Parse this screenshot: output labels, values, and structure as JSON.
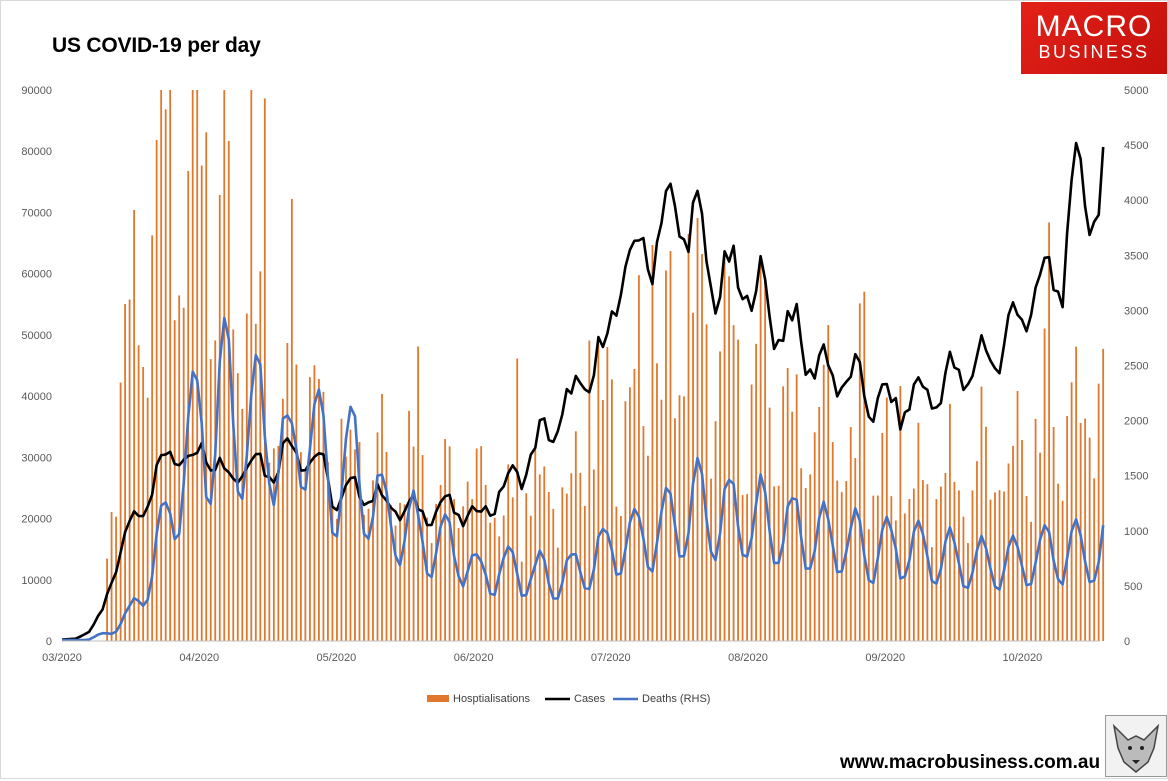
{
  "title": "US COVID-19 per day",
  "logo": {
    "line1": "MACRO",
    "line2": "BUSINESS"
  },
  "website": "www.macrobusiness.com.au",
  "colors": {
    "hospitalisations": "#e0782d",
    "cases": "#000000",
    "deaths": "#4472c4",
    "logo_bg": "#d81e1a"
  },
  "chart_data": {
    "type": "bar",
    "title": "US COVID-19 per day",
    "grid": false,
    "legend_position": "bottom",
    "x_tick_labels": [
      "03/2020",
      "04/2020",
      "05/2020",
      "06/2020",
      "07/2020",
      "08/2020",
      "09/2020",
      "10/2020"
    ],
    "y_left": {
      "min": 0,
      "max": 90000,
      "ticks": [
        0,
        10000,
        20000,
        30000,
        40000,
        50000,
        60000,
        70000,
        80000,
        90000
      ]
    },
    "y_right": {
      "min": 0,
      "max": 5000,
      "ticks": [
        0,
        500,
        1000,
        1500,
        2000,
        2500,
        3000,
        3500,
        4000,
        4500,
        5000
      ]
    },
    "series": [
      {
        "name": "Hosptialisations",
        "type": "bar",
        "axis": "left",
        "anchors_by_month": [
          [
            0,
            0
          ],
          [
            0.3,
            0
          ],
          [
            0.38,
            32000
          ],
          [
            0.5,
            45000
          ],
          [
            0.62,
            60000
          ],
          [
            0.75,
            75000
          ],
          [
            0.9,
            80000
          ],
          [
            1.0,
            75000
          ],
          [
            1.15,
            60000
          ],
          [
            1.35,
            48000
          ],
          [
            1.6,
            42000
          ],
          [
            1.8,
            40000
          ],
          [
            2.0,
            35000
          ],
          [
            2.2,
            32000
          ],
          [
            2.45,
            30000
          ],
          [
            2.8,
            27000
          ],
          [
            3.0,
            24000
          ],
          [
            3.3,
            22000
          ],
          [
            3.55,
            23000
          ],
          [
            3.8,
            30000
          ],
          [
            4.0,
            36000
          ],
          [
            4.3,
            43000
          ],
          [
            4.55,
            48000
          ],
          [
            4.75,
            45000
          ],
          [
            5.0,
            42000
          ],
          [
            5.25,
            38000
          ],
          [
            5.5,
            33000
          ],
          [
            5.8,
            27000
          ],
          [
            6.1,
            26000
          ],
          [
            6.5,
            26000
          ],
          [
            6.9,
            28000
          ],
          [
            7.2,
            34000
          ],
          [
            7.45,
            38000
          ],
          [
            7.62,
            40000
          ]
        ]
      },
      {
        "name": "Cases",
        "type": "line",
        "axis": "left",
        "anchors_by_month": [
          [
            0,
            200
          ],
          [
            0.1,
            400
          ],
          [
            0.2,
            1500
          ],
          [
            0.3,
            5000
          ],
          [
            0.37,
            11000
          ],
          [
            0.5,
            19000
          ],
          [
            0.62,
            24000
          ],
          [
            0.75,
            29000
          ],
          [
            0.85,
            32000
          ],
          [
            0.95,
            29000
          ],
          [
            1.05,
            33000
          ],
          [
            1.2,
            26000
          ],
          [
            1.35,
            30000
          ],
          [
            1.5,
            28000
          ],
          [
            1.7,
            32000
          ],
          [
            1.9,
            28000
          ],
          [
            2.0,
            23000
          ],
          [
            2.2,
            25000
          ],
          [
            2.4,
            22000
          ],
          [
            2.6,
            21000
          ],
          [
            2.8,
            22000
          ],
          [
            3.0,
            20000
          ],
          [
            3.15,
            23000
          ],
          [
            3.35,
            28000
          ],
          [
            3.5,
            33000
          ],
          [
            3.65,
            37000
          ],
          [
            3.8,
            42000
          ],
          [
            3.95,
            47000
          ],
          [
            4.05,
            58000
          ],
          [
            4.2,
            63000
          ],
          [
            4.35,
            67000
          ],
          [
            4.5,
            71000
          ],
          [
            4.65,
            65000
          ],
          [
            4.8,
            58000
          ],
          [
            5.0,
            59000
          ],
          [
            5.15,
            54000
          ],
          [
            5.35,
            50000
          ],
          [
            5.5,
            45000
          ],
          [
            5.7,
            43000
          ],
          [
            5.9,
            40000
          ],
          [
            6.05,
            38000
          ],
          [
            6.25,
            40000
          ],
          [
            6.45,
            42000
          ],
          [
            6.65,
            45000
          ],
          [
            6.85,
            48000
          ],
          [
            7.05,
            56000
          ],
          [
            7.2,
            58000
          ],
          [
            7.3,
            62000
          ],
          [
            7.42,
            76000
          ],
          [
            7.5,
            72000
          ],
          [
            7.62,
            78000
          ]
        ]
      },
      {
        "name": "Deaths (RHS)",
        "type": "line",
        "axis": "right",
        "anchors_by_month": [
          [
            0,
            5
          ],
          [
            0.2,
            15
          ],
          [
            0.35,
            80
          ],
          [
            0.5,
            250
          ],
          [
            0.62,
            550
          ],
          [
            0.75,
            1000
          ],
          [
            0.88,
            1600
          ],
          [
            1.0,
            2050
          ],
          [
            1.1,
            1900
          ],
          [
            1.2,
            2300
          ],
          [
            1.3,
            1900
          ],
          [
            1.5,
            2050
          ],
          [
            1.65,
            1500
          ],
          [
            1.75,
            2150
          ],
          [
            1.9,
            1600
          ],
          [
            2.0,
            1400
          ],
          [
            2.15,
            1600
          ],
          [
            2.3,
            1200
          ],
          [
            2.5,
            1000
          ],
          [
            2.7,
            900
          ],
          [
            2.9,
            800
          ],
          [
            3.0,
            600
          ],
          [
            3.2,
            650
          ],
          [
            3.45,
            600
          ],
          [
            3.6,
            550
          ],
          [
            3.8,
            650
          ],
          [
            4.0,
            850
          ],
          [
            4.15,
            900
          ],
          [
            4.35,
            1000
          ],
          [
            4.5,
            1100
          ],
          [
            4.65,
            1200
          ],
          [
            4.8,
            1100
          ],
          [
            5.0,
            1100
          ],
          [
            5.2,
            1050
          ],
          [
            5.45,
            950
          ],
          [
            5.7,
            900
          ],
          [
            5.9,
            800
          ],
          [
            6.1,
            850
          ],
          [
            6.35,
            780
          ],
          [
            6.6,
            700
          ],
          [
            6.9,
            700
          ],
          [
            7.1,
            760
          ],
          [
            7.3,
            800
          ],
          [
            7.5,
            780
          ],
          [
            7.62,
            900
          ]
        ]
      }
    ]
  }
}
